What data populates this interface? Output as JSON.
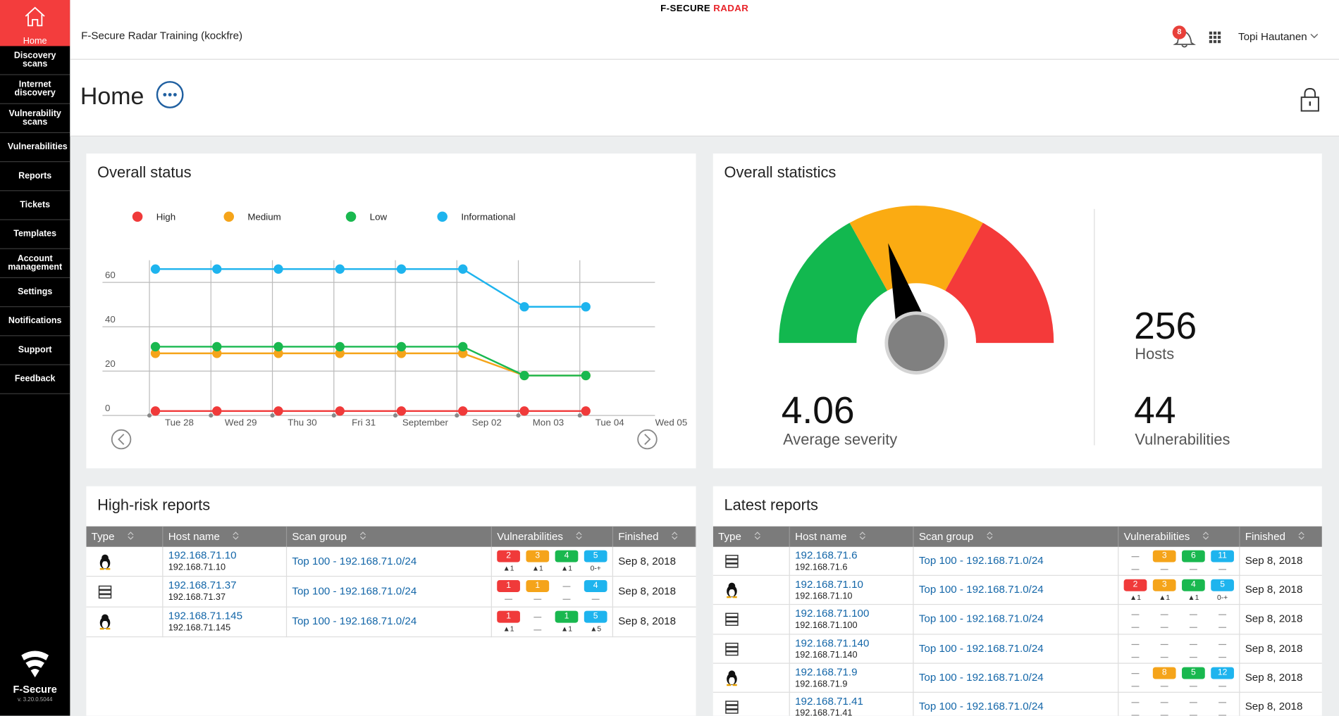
{
  "header": {
    "brand": "F-SECURE",
    "product": "RADAR",
    "organization": "F-Secure Radar Training (kockfre)",
    "notifications": 8,
    "user": "Topi Hautanen"
  },
  "sidebar": {
    "home": "Home",
    "items": [
      "Discovery scans",
      "Internet discovery",
      "Vulnerability scans",
      "Vulnerabilities",
      "Reports",
      "Tickets",
      "Templates",
      "Account management",
      "Settings",
      "Notifications",
      "Support",
      "Feedback"
    ],
    "logo": "F-Secure",
    "version": "v. 3.20.0.5044"
  },
  "page_title": "Home",
  "chart_data": {
    "type": "line",
    "title": "Overall status",
    "categories": [
      "Tue 28",
      "Wed 29",
      "Thu 30",
      "Fri 31",
      "September",
      "Sep 02",
      "Mon 03",
      "Tue 04",
      "Wed 05"
    ],
    "series": [
      {
        "name": "High",
        "color": "#f03a3a",
        "values": [
          2,
          2,
          2,
          2,
          2,
          2,
          2,
          2,
          null
        ]
      },
      {
        "name": "Medium",
        "color": "#f5a41a",
        "values": [
          28,
          28,
          28,
          28,
          28,
          28,
          18,
          18,
          null
        ]
      },
      {
        "name": "Low",
        "color": "#19b84f",
        "values": [
          31,
          31,
          31,
          31,
          31,
          31,
          18,
          18,
          null
        ]
      },
      {
        "name": "Informational",
        "color": "#1eb4ee",
        "values": [
          66,
          66,
          66,
          66,
          66,
          66,
          49,
          49,
          null
        ]
      }
    ],
    "ylim": [
      0,
      70
    ],
    "yticks": [
      0,
      20,
      40,
      60
    ],
    "grid": true,
    "legend": "top"
  },
  "overall_statistics": {
    "title": "Overall statistics",
    "average_severity": 4.06,
    "average_severity_label": "Average severity",
    "hosts": 256,
    "hosts_label": "Hosts",
    "vulnerabilities": 44,
    "vulnerabilities_label": "Vulnerabilities"
  },
  "high_risk_reports": {
    "title": "High-risk reports",
    "columns": [
      "Type",
      "Host name",
      "Scan group",
      "Vulnerabilities",
      "Finished"
    ],
    "rows": [
      {
        "host": "192.168.71.10",
        "ip": "192.168.71.10",
        "scan_group": "Top 100 - 192.168.71.0/24",
        "vulnerabilities": [
          {
            "count": 2,
            "change": "▲1"
          },
          {
            "count": 3,
            "change": "▲1"
          },
          {
            "count": 4,
            "change": "▲1"
          },
          {
            "count": 5,
            "change": "0-+"
          }
        ],
        "finished": "Sep 8, 2018"
      },
      {
        "host": "192.168.71.37",
        "ip": "192.168.71.37",
        "scan_group": "Top 100 - 192.168.71.0/24",
        "vulnerabilities": [
          {
            "count": 1
          },
          {
            "count": 1
          },
          null,
          {
            "count": 4
          }
        ],
        "finished": "Sep 8, 2018"
      },
      {
        "host": "192.168.71.145",
        "ip": "192.168.71.145",
        "scan_group": "Top 100 - 192.168.71.0/24",
        "vulnerabilities": [
          {
            "count": 1,
            "change": "▲1"
          },
          null,
          {
            "count": 1,
            "change": "▲1"
          },
          {
            "count": 5,
            "change": "▲5"
          }
        ],
        "finished": "Sep 8, 2018"
      }
    ]
  },
  "latest_reports": {
    "title": "Latest reports",
    "columns": [
      "Type",
      "Host name",
      "Scan group",
      "Vulnerabilities",
      "Finished"
    ],
    "rows": [
      {
        "host": "192.168.71.6",
        "ip": "192.168.71.6",
        "scan_group": "Top 100 - 192.168.71.0/24",
        "vulnerabilities": [
          null,
          {
            "count": 3
          },
          {
            "count": 6
          },
          {
            "count": 11
          }
        ],
        "finished": "Sep 8, 2018"
      },
      {
        "host": "192.168.71.10",
        "ip": "192.168.71.10",
        "scan_group": "Top 100 - 192.168.71.0/24",
        "vulnerabilities": [
          {
            "count": 2,
            "change": "▲1"
          },
          {
            "count": 3,
            "change": "▲1"
          },
          {
            "count": 4,
            "change": "▲1"
          },
          {
            "count": 5,
            "change": "0-+"
          }
        ],
        "finished": "Sep 8, 2018"
      },
      {
        "host": "192.168.71.100",
        "ip": "192.168.71.100",
        "scan_group": "Top 100 - 192.168.71.0/24",
        "vulnerabilities": [
          null,
          null,
          null,
          null
        ],
        "finished": "Sep 8, 2018"
      },
      {
        "host": "192.168.71.140",
        "ip": "192.168.71.140",
        "scan_group": "Top 100 - 192.168.71.0/24",
        "vulnerabilities": [
          null,
          null,
          null,
          null
        ],
        "finished": "Sep 8, 2018"
      },
      {
        "host": "192.168.71.9",
        "ip": "192.168.71.9",
        "scan_group": "Top 100 - 192.168.71.0/24",
        "vulnerabilities": [
          null,
          {
            "count": 8
          },
          {
            "count": 5
          },
          {
            "count": 12
          }
        ],
        "finished": "Sep 8, 2018"
      },
      {
        "host": "192.168.71.41",
        "ip": "192.168.71.41",
        "scan_group": "Top 100 - 192.168.71.0/24",
        "vulnerabilities": [
          null,
          null,
          null,
          null
        ],
        "finished": "Sep 8, 2018"
      }
    ]
  }
}
